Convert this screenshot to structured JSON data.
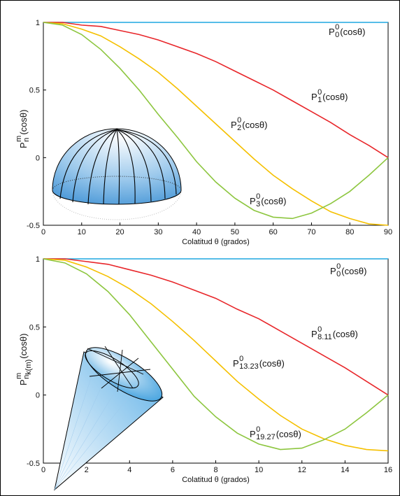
{
  "chart_data": [
    {
      "type": "line",
      "xlabel": "Colatitud θ (grados)",
      "ylabel": {
        "base": "P",
        "sup": "m",
        "sub": "n",
        "arg": "(cosθ)"
      },
      "x": [
        0,
        5,
        10,
        15,
        20,
        25,
        30,
        35,
        40,
        45,
        50,
        55,
        60,
        65,
        70,
        75,
        80,
        85,
        90
      ],
      "xlim": [
        0,
        90
      ],
      "xticks": [
        0,
        10,
        20,
        30,
        40,
        50,
        60,
        70,
        80,
        90
      ],
      "ylim": [
        -0.5,
        1
      ],
      "yticks": [
        -0.5,
        0,
        0.5,
        1
      ],
      "series": [
        {
          "label": {
            "base": "P",
            "sup": "0",
            "sub": "0",
            "arg": "(cosθ)"
          },
          "color": "#1ea7e0",
          "values": [
            1,
            1,
            1,
            1,
            1,
            1,
            1,
            1,
            1,
            1,
            1,
            1,
            1,
            1,
            1,
            1,
            1,
            1,
            1
          ]
        },
        {
          "label": {
            "base": "P",
            "sup": "0",
            "sub": "1",
            "arg": "(cosθ)"
          },
          "color": "#e8262a",
          "values": [
            1,
            1.0,
            0.98,
            0.97,
            0.94,
            0.91,
            0.87,
            0.82,
            0.77,
            0.71,
            0.64,
            0.57,
            0.5,
            0.42,
            0.34,
            0.26,
            0.17,
            0.09,
            0
          ]
        },
        {
          "label": {
            "base": "P",
            "sup": "0",
            "sub": "2",
            "arg": "(cosθ)"
          },
          "color": "#f5c000",
          "values": [
            1,
            0.99,
            0.95,
            0.9,
            0.82,
            0.73,
            0.63,
            0.51,
            0.38,
            0.25,
            0.12,
            -0.01,
            -0.13,
            -0.23,
            -0.32,
            -0.4,
            -0.45,
            -0.49,
            -0.5
          ]
        },
        {
          "label": {
            "base": "P",
            "sup": "0",
            "sub": "3",
            "arg": "(cosθ)"
          },
          "color": "#8dc63f",
          "values": [
            1,
            0.98,
            0.91,
            0.8,
            0.66,
            0.5,
            0.32,
            0.15,
            -0.03,
            -0.18,
            -0.3,
            -0.39,
            -0.44,
            -0.45,
            -0.41,
            -0.34,
            -0.25,
            -0.13,
            0
          ]
        }
      ]
    },
    {
      "type": "line",
      "xlabel": "Colatitud θ (grados)",
      "ylabel": {
        "base": "P",
        "sup": "m",
        "sub": "n",
        "subsub": "k(m)",
        "arg": "(cosθ)"
      },
      "x": [
        0,
        1,
        2,
        3,
        4,
        5,
        6,
        7,
        8,
        9,
        10,
        11,
        12,
        13,
        14,
        15,
        16
      ],
      "xlim": [
        0,
        16
      ],
      "xticks": [
        0,
        2,
        4,
        6,
        8,
        10,
        12,
        14,
        16
      ],
      "ylim": [
        -0.5,
        1
      ],
      "yticks": [
        -0.5,
        0,
        0.5,
        1
      ],
      "series": [
        {
          "label": {
            "base": "P",
            "sup": "0",
            "sub": "0",
            "arg": "(cosθ)"
          },
          "color": "#1ea7e0",
          "values": [
            1,
            1,
            1,
            1,
            1,
            1,
            1,
            1,
            1,
            1,
            1,
            1,
            1,
            1,
            1,
            1,
            1
          ]
        },
        {
          "label": {
            "base": "P",
            "sup": "0",
            "sub": "8.11",
            "arg": "(cosθ)"
          },
          "color": "#e8262a",
          "values": [
            1,
            1.0,
            0.98,
            0.96,
            0.92,
            0.88,
            0.83,
            0.77,
            0.71,
            0.63,
            0.56,
            0.47,
            0.38,
            0.29,
            0.2,
            0.1,
            0
          ]
        },
        {
          "label": {
            "base": "P",
            "sup": "0",
            "sub": "13.23",
            "arg": "(cosθ)"
          },
          "color": "#f5c000",
          "values": [
            1,
            0.99,
            0.94,
            0.87,
            0.78,
            0.67,
            0.54,
            0.4,
            0.25,
            0.1,
            -0.03,
            -0.15,
            -0.25,
            -0.32,
            -0.37,
            -0.4,
            -0.41
          ]
        },
        {
          "label": {
            "base": "P",
            "sup": "0",
            "sub": "19.27",
            "arg": "(cosθ)"
          },
          "color": "#8dc63f",
          "values": [
            1,
            0.97,
            0.89,
            0.76,
            0.59,
            0.39,
            0.19,
            -0.01,
            -0.16,
            -0.28,
            -0.36,
            -0.4,
            -0.39,
            -0.33,
            -0.25,
            -0.13,
            0
          ]
        }
      ]
    }
  ]
}
